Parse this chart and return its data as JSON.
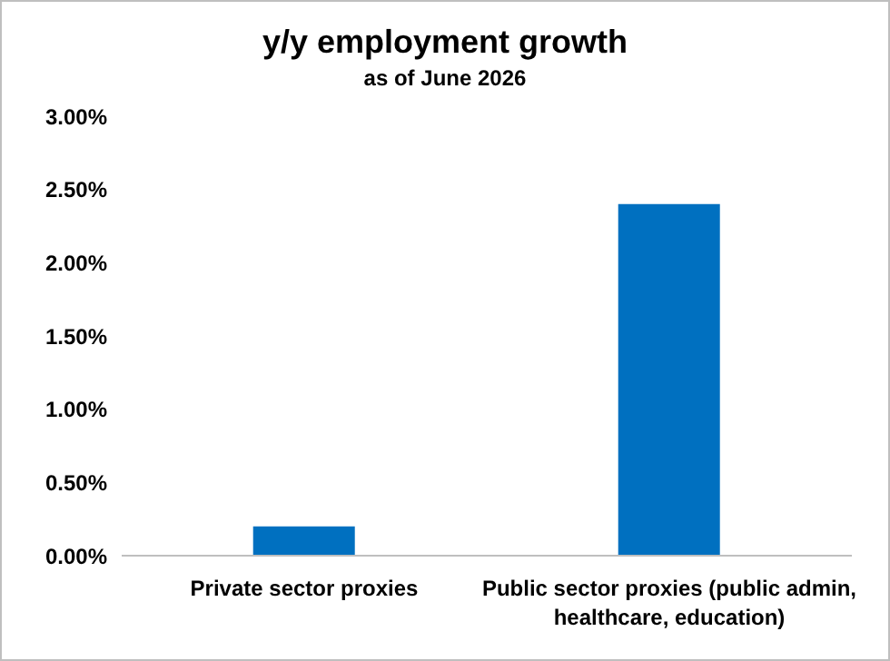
{
  "chart_data": {
    "type": "bar",
    "title": "y/y employment growth",
    "subtitle": "as of June 2026",
    "categories": [
      "Private sector proxies",
      "Public sector proxies (public admin, healthcare, education)"
    ],
    "values": [
      0.2,
      2.4
    ],
    "color": "#0070c0",
    "ylim": [
      0,
      3
    ],
    "yticks": [
      {
        "value": 0,
        "label": "0.00%"
      },
      {
        "value": 0.5,
        "label": "0.50%"
      },
      {
        "value": 1,
        "label": "1.00%"
      },
      {
        "value": 1.5,
        "label": "1.50%"
      },
      {
        "value": 2,
        "label": "2.00%"
      },
      {
        "value": 2.5,
        "label": "2.50%"
      },
      {
        "value": 3,
        "label": "3.00%"
      }
    ],
    "grid": false,
    "legend": false
  }
}
